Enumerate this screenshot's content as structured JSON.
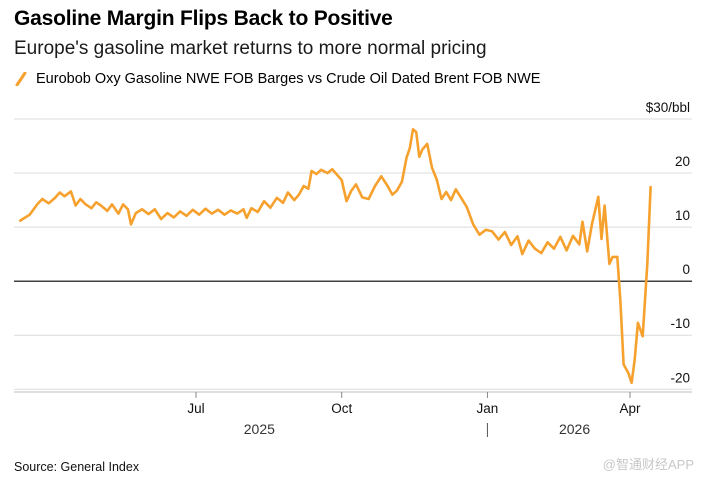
{
  "title": "Gasoline Margin Flips Back to Positive",
  "subtitle": "Europe's gasoline market returns to more normal pricing",
  "source": "Source: General Index",
  "watermark": "@智通财经APP",
  "colors": {
    "series": "#f6a12e",
    "grid": "#dcdcdc",
    "zero": "#000000"
  },
  "chart_data": {
    "type": "line",
    "unit_label": "$30/bbl",
    "y_ticks": [
      {
        "value": 30,
        "label": "$30/bbl"
      },
      {
        "value": 20,
        "label": "20"
      },
      {
        "value": 10,
        "label": "10"
      },
      {
        "value": 0,
        "label": "0"
      },
      {
        "value": -10,
        "label": "-10"
      },
      {
        "value": -20,
        "label": "-20"
      }
    ],
    "ylim": [
      -20.5,
      30
    ],
    "xlim": [
      "2025-03-10",
      "2026-04-25"
    ],
    "x_ticks": [
      {
        "date": "2025-07-01",
        "label": "Jul"
      },
      {
        "date": "2025-10-01",
        "label": "Oct"
      },
      {
        "date": "2026-01-01",
        "label": "Jan"
      },
      {
        "date": "2026-04-01",
        "label": "Apr"
      }
    ],
    "year_labels": [
      {
        "label": "2025",
        "center": "2025-08-10"
      },
      {
        "label": "2026",
        "center": "2026-02-25"
      }
    ],
    "year_divider": "2026-01-01",
    "grid": true,
    "legend_position": "top-left",
    "series": [
      {
        "name": "Eurobob Oxy Gasoline NWE FOB Barges vs Crude Oil Dated Brent FOB NWE",
        "color": "#f6a12e",
        "points": [
          [
            "2025-03-12",
            11.2
          ],
          [
            "2025-03-18",
            12.3
          ],
          [
            "2025-03-23",
            14.3
          ],
          [
            "2025-03-26",
            15.2
          ],
          [
            "2025-03-30",
            14.4
          ],
          [
            "2025-04-03",
            15.4
          ],
          [
            "2025-04-06",
            16.4
          ],
          [
            "2025-04-09",
            15.7
          ],
          [
            "2025-04-13",
            16.6
          ],
          [
            "2025-04-16",
            14.0
          ],
          [
            "2025-04-19",
            15.2
          ],
          [
            "2025-04-22",
            14.3
          ],
          [
            "2025-04-26",
            13.5
          ],
          [
            "2025-04-29",
            14.6
          ],
          [
            "2025-05-02",
            14.0
          ],
          [
            "2025-05-06",
            13.0
          ],
          [
            "2025-05-09",
            14.2
          ],
          [
            "2025-05-13",
            12.5
          ],
          [
            "2025-05-16",
            14.2
          ],
          [
            "2025-05-19",
            13.3
          ],
          [
            "2025-05-21",
            10.5
          ],
          [
            "2025-05-24",
            12.6
          ],
          [
            "2025-05-28",
            13.3
          ],
          [
            "2025-06-01",
            12.4
          ],
          [
            "2025-06-05",
            13.3
          ],
          [
            "2025-06-09",
            11.5
          ],
          [
            "2025-06-13",
            12.6
          ],
          [
            "2025-06-17",
            11.8
          ],
          [
            "2025-06-21",
            12.9
          ],
          [
            "2025-06-25",
            12.1
          ],
          [
            "2025-06-29",
            13.2
          ],
          [
            "2025-07-03",
            12.3
          ],
          [
            "2025-07-07",
            13.4
          ],
          [
            "2025-07-11",
            12.5
          ],
          [
            "2025-07-15",
            13.2
          ],
          [
            "2025-07-19",
            12.3
          ],
          [
            "2025-07-23",
            13.1
          ],
          [
            "2025-07-27",
            12.5
          ],
          [
            "2025-07-31",
            13.3
          ],
          [
            "2025-08-02",
            11.7
          ],
          [
            "2025-08-05",
            13.5
          ],
          [
            "2025-08-09",
            12.8
          ],
          [
            "2025-08-13",
            14.8
          ],
          [
            "2025-08-17",
            13.6
          ],
          [
            "2025-08-21",
            15.4
          ],
          [
            "2025-08-25",
            14.5
          ],
          [
            "2025-08-28",
            16.4
          ],
          [
            "2025-09-01",
            15.0
          ],
          [
            "2025-09-04",
            16.0
          ],
          [
            "2025-09-07",
            17.6
          ],
          [
            "2025-09-10",
            17.1
          ],
          [
            "2025-09-12",
            20.4
          ],
          [
            "2025-09-15",
            19.8
          ],
          [
            "2025-09-18",
            20.6
          ],
          [
            "2025-09-22",
            20.0
          ],
          [
            "2025-09-25",
            20.7
          ],
          [
            "2025-09-28",
            19.7
          ],
          [
            "2025-10-01",
            18.7
          ],
          [
            "2025-10-04",
            14.8
          ],
          [
            "2025-10-07",
            16.7
          ],
          [
            "2025-10-10",
            17.9
          ],
          [
            "2025-10-14",
            15.5
          ],
          [
            "2025-10-18",
            15.2
          ],
          [
            "2025-10-22",
            17.6
          ],
          [
            "2025-10-26",
            19.4
          ],
          [
            "2025-10-30",
            17.6
          ],
          [
            "2025-11-02",
            16.0
          ],
          [
            "2025-11-05",
            16.8
          ],
          [
            "2025-11-08",
            18.4
          ],
          [
            "2025-11-11",
            22.9
          ],
          [
            "2025-11-13",
            24.6
          ],
          [
            "2025-11-15",
            28.1
          ],
          [
            "2025-11-17",
            27.6
          ],
          [
            "2025-11-19",
            23.0
          ],
          [
            "2025-11-21",
            24.4
          ],
          [
            "2025-11-24",
            25.4
          ],
          [
            "2025-11-27",
            21.0
          ],
          [
            "2025-11-30",
            18.8
          ],
          [
            "2025-12-03",
            15.2
          ],
          [
            "2025-12-06",
            16.5
          ],
          [
            "2025-12-09",
            15.0
          ],
          [
            "2025-12-12",
            17.0
          ],
          [
            "2025-12-15",
            15.6
          ],
          [
            "2025-12-19",
            13.7
          ],
          [
            "2025-12-23",
            10.5
          ],
          [
            "2025-12-27",
            8.6
          ],
          [
            "2025-12-31",
            9.5
          ],
          [
            "2026-01-04",
            9.2
          ],
          [
            "2026-01-08",
            7.7
          ],
          [
            "2026-01-12",
            9.1
          ],
          [
            "2026-01-16",
            6.7
          ],
          [
            "2026-01-20",
            8.3
          ],
          [
            "2026-01-23",
            5.0
          ],
          [
            "2026-01-27",
            7.5
          ],
          [
            "2026-01-31",
            6.0
          ],
          [
            "2026-02-04",
            5.2
          ],
          [
            "2026-02-08",
            7.2
          ],
          [
            "2026-02-12",
            6.0
          ],
          [
            "2026-02-16",
            8.2
          ],
          [
            "2026-02-20",
            5.7
          ],
          [
            "2026-02-24",
            8.4
          ],
          [
            "2026-02-28",
            6.8
          ],
          [
            "2026-03-02",
            11.0
          ],
          [
            "2026-03-05",
            5.5
          ],
          [
            "2026-03-08",
            10.6
          ],
          [
            "2026-03-12",
            15.6
          ],
          [
            "2026-03-14",
            7.8
          ],
          [
            "2026-03-16",
            14.0
          ],
          [
            "2026-03-19",
            3.2
          ],
          [
            "2026-03-21",
            4.5
          ],
          [
            "2026-03-24",
            4.5
          ],
          [
            "2026-03-26",
            -4.0
          ],
          [
            "2026-03-28",
            -15.4
          ],
          [
            "2026-03-31",
            -17.0
          ],
          [
            "2026-04-02",
            -18.8
          ],
          [
            "2026-04-04",
            -14.5
          ],
          [
            "2026-04-06",
            -7.7
          ],
          [
            "2026-04-09",
            -10.2
          ],
          [
            "2026-04-12",
            3.5
          ],
          [
            "2026-04-14",
            17.4
          ]
        ]
      }
    ]
  }
}
